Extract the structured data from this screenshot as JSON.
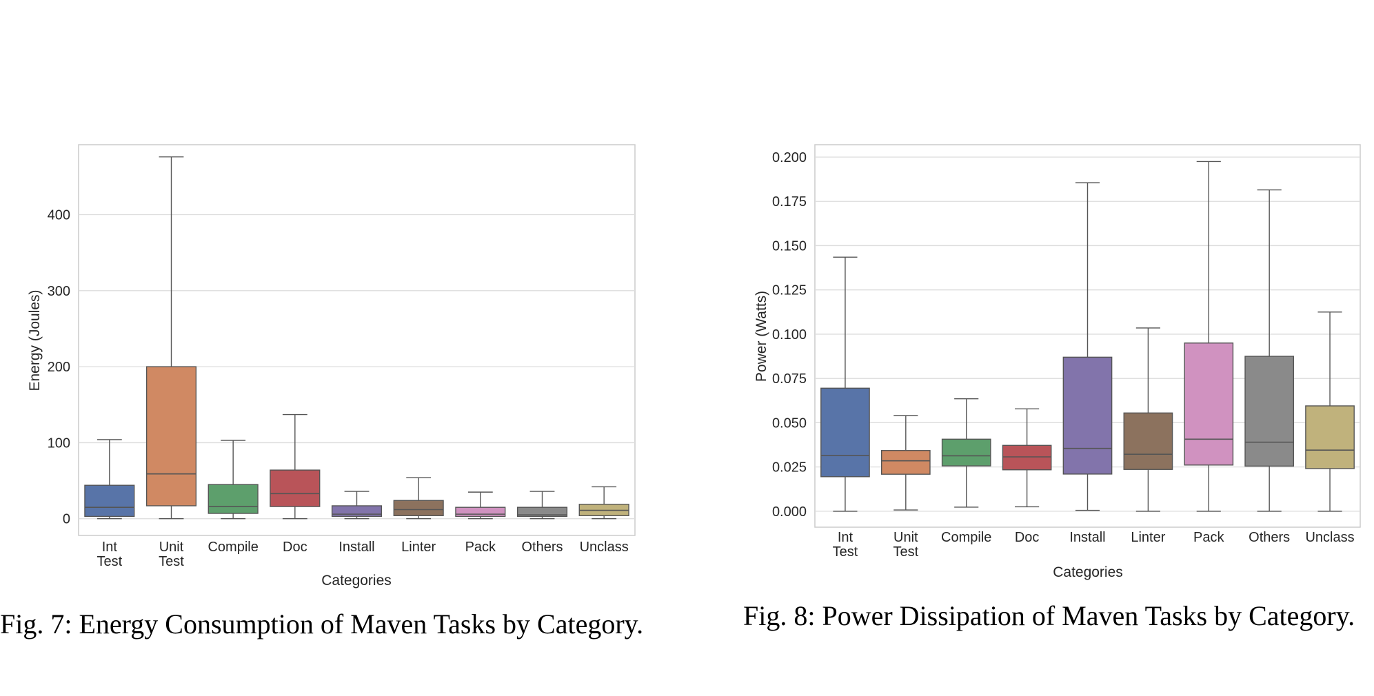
{
  "charts": [
    {
      "caption": "Fig. 7: Energy Consumption of Maven Tasks by Category.",
      "xlabel": "Categories",
      "ylabel": "Energy (Joules)",
      "yticks": [
        0,
        100,
        200,
        300,
        400
      ],
      "categories": [
        {
          "label": [
            "Int",
            "Test"
          ]
        },
        {
          "label": [
            "Unit",
            "Test"
          ]
        },
        {
          "label": [
            "Compile"
          ]
        },
        {
          "label": [
            "Doc"
          ]
        },
        {
          "label": [
            "Install"
          ]
        },
        {
          "label": [
            "Linter"
          ]
        },
        {
          "label": [
            "Pack"
          ]
        },
        {
          "label": [
            "Others"
          ]
        },
        {
          "label": [
            "Unclass"
          ]
        }
      ]
    },
    {
      "caption": "Fig. 8: Power Dissipation of Maven Tasks by Category.",
      "xlabel": "Categories",
      "ylabel": "Power (Watts)",
      "yticks": [
        "0.000",
        "0.025",
        "0.050",
        "0.075",
        "0.100",
        "0.125",
        "0.150",
        "0.175",
        "0.200"
      ],
      "categories": [
        {
          "label": [
            "Int",
            "Test"
          ]
        },
        {
          "label": [
            "Unit",
            "Test"
          ]
        },
        {
          "label": [
            "Compile"
          ]
        },
        {
          "label": [
            "Doc"
          ]
        },
        {
          "label": [
            "Install"
          ]
        },
        {
          "label": [
            "Linter"
          ]
        },
        {
          "label": [
            "Pack"
          ]
        },
        {
          "label": [
            "Others"
          ]
        },
        {
          "label": [
            "Unclass"
          ]
        }
      ]
    }
  ],
  "chart_data": [
    {
      "type": "box",
      "title": "",
      "caption": "Fig. 7: Energy Consumption of Maven Tasks by Category.",
      "xlabel": "Categories",
      "ylabel": "Energy (Joules)",
      "ylim": [
        -22,
        492
      ],
      "grid": true,
      "categories": [
        "Int Test",
        "Unit Test",
        "Compile",
        "Doc",
        "Install",
        "Linter",
        "Pack",
        "Others",
        "Unclass"
      ],
      "colors": [
        "#5874a8",
        "#d08963",
        "#5d9f6c",
        "#b95459",
        "#8274ab",
        "#8c725e",
        "#d092c0",
        "#8a8a8a",
        "#c0b27c"
      ],
      "boxes": [
        {
          "whisker_low": 0,
          "q1": 3,
          "median": 15,
          "q3": 44,
          "whisker_high": 104
        },
        {
          "whisker_low": 0,
          "q1": 17,
          "median": 59,
          "q3": 200,
          "whisker_high": 476
        },
        {
          "whisker_low": 0,
          "q1": 7,
          "median": 16,
          "q3": 45,
          "whisker_high": 103
        },
        {
          "whisker_low": 0,
          "q1": 16,
          "median": 33,
          "q3": 64,
          "whisker_high": 137
        },
        {
          "whisker_low": 0,
          "q1": 3,
          "median": 6,
          "q3": 17,
          "whisker_high": 36
        },
        {
          "whisker_low": 0,
          "q1": 4,
          "median": 12,
          "q3": 24,
          "whisker_high": 54
        },
        {
          "whisker_low": 0,
          "q1": 3,
          "median": 6,
          "q3": 15,
          "whisker_high": 35
        },
        {
          "whisker_low": 0,
          "q1": 3,
          "median": 5,
          "q3": 15,
          "whisker_high": 36
        },
        {
          "whisker_low": 0,
          "q1": 4,
          "median": 11,
          "q3": 19,
          "whisker_high": 42
        }
      ]
    },
    {
      "type": "box",
      "title": "",
      "caption": "Fig. 8: Power Dissipation of Maven Tasks by Category.",
      "xlabel": "Categories",
      "ylabel": "Power (Watts)",
      "ylim": [
        -0.009,
        0.207
      ],
      "grid": true,
      "categories": [
        "Int Test",
        "Unit Test",
        "Compile",
        "Doc",
        "Install",
        "Linter",
        "Pack",
        "Others",
        "Unclass"
      ],
      "colors": [
        "#5874a8",
        "#d08963",
        "#5d9f6c",
        "#b95459",
        "#8274ab",
        "#8c725e",
        "#d092c0",
        "#8a8a8a",
        "#c0b27c"
      ],
      "boxes": [
        {
          "whisker_low": 0.0,
          "q1": 0.0195,
          "median": 0.0315,
          "q3": 0.0695,
          "whisker_high": 0.1435
        },
        {
          "whisker_low": 0.0007,
          "q1": 0.0209,
          "median": 0.0285,
          "q3": 0.0343,
          "whisker_high": 0.054
        },
        {
          "whisker_low": 0.0023,
          "q1": 0.0256,
          "median": 0.0313,
          "q3": 0.0407,
          "whisker_high": 0.0635
        },
        {
          "whisker_low": 0.0025,
          "q1": 0.0234,
          "median": 0.0307,
          "q3": 0.0372,
          "whisker_high": 0.0578
        },
        {
          "whisker_low": 0.0005,
          "q1": 0.021,
          "median": 0.0355,
          "q3": 0.087,
          "whisker_high": 0.1855
        },
        {
          "whisker_low": 0.0,
          "q1": 0.0236,
          "median": 0.0322,
          "q3": 0.0555,
          "whisker_high": 0.1035
        },
        {
          "whisker_low": 0.0,
          "q1": 0.0261,
          "median": 0.0407,
          "q3": 0.095,
          "whisker_high": 0.1975
        },
        {
          "whisker_low": 0.0,
          "q1": 0.0255,
          "median": 0.039,
          "q3": 0.0875,
          "whisker_high": 0.1815
        },
        {
          "whisker_low": 0.0,
          "q1": 0.0241,
          "median": 0.0345,
          "q3": 0.0595,
          "whisker_high": 0.1125
        }
      ]
    }
  ]
}
